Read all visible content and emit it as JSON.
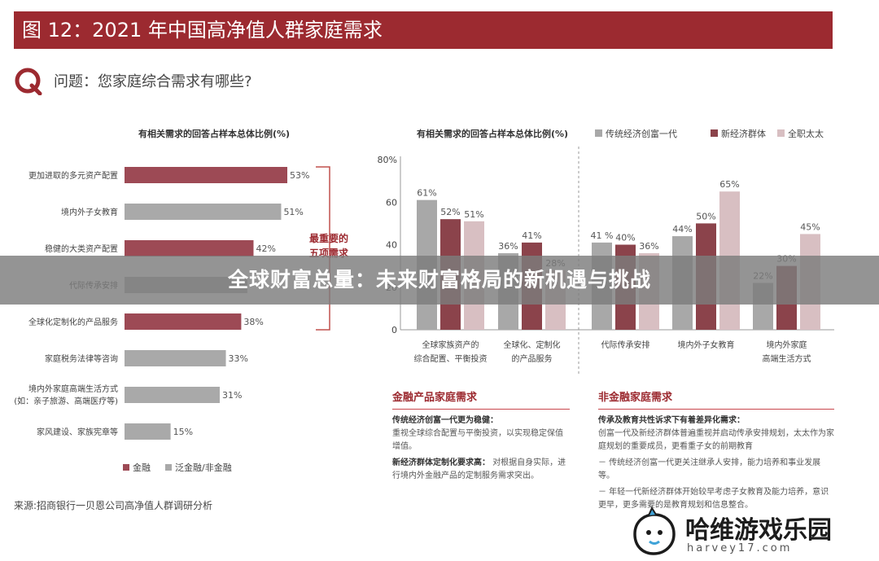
{
  "header": {
    "title": "图 12：2021 年中国高净值人群家庭需求"
  },
  "question": "问题：您家庭综合需求有哪些?",
  "source": "来源:招商银行一贝恩公司高净值人群调研分析",
  "colors": {
    "brand": "#9c2a30",
    "finance_bar": "#9d4a55",
    "nonfinance_bar": "#a9a9a9",
    "series1": "#a8a8a8",
    "series2": "#8b434b",
    "series3": "#d8bfc2"
  },
  "chart_data": [
    {
      "type": "bar",
      "orientation": "horizontal",
      "title": "有相关需求的回答占样本总体比例(%)",
      "categories": [
        "更加进取的多元资产配置",
        "境内外子女教育",
        "稳健的大类资产配置",
        "代际传承安排",
        "全球化定制化的产品服务",
        "家庭税务法律等咨询",
        "境内外家庭高端生活方式",
        "家风建设、家族宪章等"
      ],
      "category_sublabels": [
        "",
        "",
        "",
        "",
        "",
        "",
        "(如：亲子旅游、高端医疗等)",
        ""
      ],
      "values": [
        53,
        51,
        42,
        40,
        38,
        33,
        31,
        15
      ],
      "value_labels": [
        "53%",
        "51%",
        "42%",
        "",
        "38%",
        "33%",
        "31%",
        "15%"
      ],
      "groups": [
        "金融",
        "泛金融/非金融",
        "金融",
        "泛金融/非金融",
        "金融",
        "泛金融/非金融",
        "泛金融/非金融",
        "泛金融/非金融"
      ],
      "legend": [
        "金融",
        "泛金融/非金融"
      ],
      "annotation": {
        "line1": "最重要的",
        "line2": "五项需求"
      },
      "xlim": [
        0,
        60
      ]
    },
    {
      "type": "bar",
      "title": "有相关需求的回答占样本总体比例(%)",
      "categories": [
        "全球家族资产的\n综合配置、平衡投资",
        "全球化、定制化\n的产品服务",
        "代际传承安排",
        "境内外子女教育",
        "境内外家庭\n高端生活方式"
      ],
      "series": [
        {
          "name": "传统经济创富一代",
          "values": [
            61,
            36,
            41,
            44,
            22
          ],
          "labels": [
            "61%",
            "36%",
            "41 %",
            "44%",
            "22%"
          ]
        },
        {
          "name": "新经济群体",
          "values": [
            52,
            41,
            40,
            50,
            30
          ],
          "labels": [
            "52%",
            "41%",
            "40%",
            "50%",
            "30%"
          ]
        },
        {
          "name": "全职太太",
          "values": [
            51,
            28,
            36,
            65,
            45
          ],
          "labels": [
            "51%",
            "28%",
            "36%",
            "65%",
            "45%"
          ]
        }
      ],
      "yticks": [
        "0",
        "20",
        "40",
        "60",
        "80%"
      ],
      "ylim": [
        0,
        80
      ]
    }
  ],
  "finance_box": {
    "title": "金融产品家庭需求",
    "p1_head": "传统经济创富一代更为稳健：",
    "p1_body": "重视全球综合配置与平衡投资，以实现稳定保值增值。",
    "p2_head": "新经济群体定制化要求高：",
    "p2_body": "对根据自身实际，进行境内外金融产品的定制服务需求突出。"
  },
  "nonfinance_box": {
    "title": "非金融家庭需求",
    "p1_head": "传承及教育共性诉求下有着差异化需求：",
    "p1_body": "创富一代及新经济群体普遍重视并启动传承安排规划，太太作为家庭规划的重要成员，更看重子女的前期教育",
    "p2": "－ 传统经济创富一代更关注继承人安排，能力培养和事业发展等。",
    "p3": "－ 年轻一代新经济群体开始较早考虑子女教育及能力培养，意识更早，更多需要的是教育规划和信息整合。"
  },
  "banner": {
    "text": "全球财富总量：未来财富格局的新机遇与挑战"
  },
  "watermark": {
    "name": "哈维游戏乐园",
    "url": "harvey17.com"
  }
}
